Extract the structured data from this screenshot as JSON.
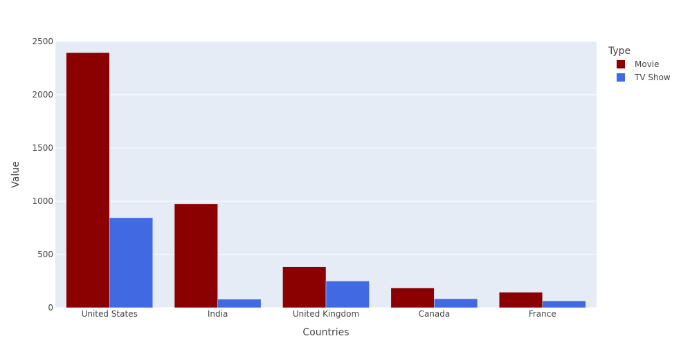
{
  "chart_data": {
    "type": "bar",
    "barmode": "group",
    "title": "",
    "xlabel": "Countries",
    "ylabel": "Value",
    "categories": [
      "United States",
      "India",
      "United Kingdom",
      "Canada",
      "France"
    ],
    "series": [
      {
        "name": "Movie",
        "color": "#8b0000",
        "values": [
          2395,
          975,
          385,
          185,
          145
        ]
      },
      {
        "name": "TV Show",
        "color": "#4169e1",
        "values": [
          845,
          80,
          250,
          84,
          64
        ]
      }
    ],
    "ylim": [
      0,
      2500
    ],
    "yticks": [
      0,
      500,
      1000,
      1500,
      2000,
      2500
    ],
    "grid": true,
    "plot_background": "#e5ecf6",
    "legend": {
      "title": "Type",
      "placement": "top-right outside"
    }
  }
}
